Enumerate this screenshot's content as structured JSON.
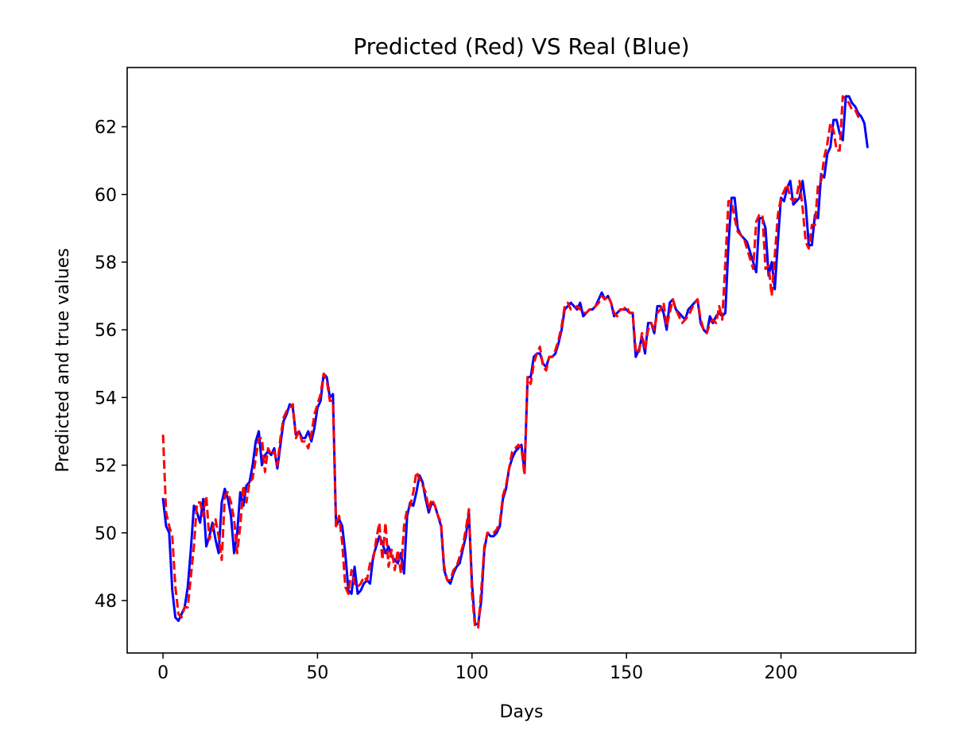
{
  "chart_data": {
    "type": "line",
    "title": "Predicted (Red) VS Real (Blue)",
    "xlabel": "Days",
    "ylabel": "Predicted and true values",
    "xlim": [
      -11.6,
      243.6
    ],
    "ylim": [
      46.45,
      63.75
    ],
    "xticks": [
      0,
      50,
      100,
      150,
      200
    ],
    "yticks": [
      48,
      50,
      52,
      54,
      56,
      58,
      60,
      62
    ],
    "xtick_labels": [
      "0",
      "50",
      "100",
      "150",
      "200"
    ],
    "ytick_labels": [
      "48",
      "50",
      "52",
      "54",
      "56",
      "58",
      "60",
      "62"
    ],
    "grid": false,
    "colors": {
      "real": "#0000ff",
      "predicted": "#ff0000"
    },
    "series": [
      {
        "style": "solid",
        "x_start": 0,
        "values": [
          51.0,
          50.2,
          50.0,
          48.3,
          47.5,
          47.4,
          47.6,
          47.8,
          48.4,
          49.5,
          50.8,
          50.6,
          50.3,
          51.0,
          49.6,
          49.9,
          50.3,
          49.8,
          49.4,
          50.9,
          51.3,
          51.0,
          50.5,
          49.4,
          50.0,
          51.2,
          50.8,
          51.4,
          51.5,
          52.0,
          52.7,
          53.0,
          52.0,
          52.3,
          52.4,
          52.3,
          52.5,
          51.9,
          52.6,
          53.3,
          53.5,
          53.8,
          53.7,
          52.9,
          53.0,
          52.8,
          52.8,
          53.0,
          52.7,
          53.1,
          53.7,
          53.9,
          54.7,
          54.6,
          54.0,
          54.1,
          50.2,
          50.4,
          50.2,
          49.4,
          48.3,
          48.2,
          49.0,
          48.2,
          48.3,
          48.5,
          48.6,
          48.5,
          49.3,
          49.6,
          49.9,
          49.7,
          49.4,
          49.6,
          49.3,
          49.2,
          49.1,
          49.4,
          48.8,
          50.5,
          50.9,
          50.8,
          51.2,
          51.7,
          51.5,
          51.0,
          50.6,
          50.9,
          50.8,
          50.5,
          50.2,
          48.9,
          48.6,
          48.5,
          48.8,
          49.0,
          49.1,
          49.5,
          49.9,
          50.6,
          48.5,
          47.3,
          47.3,
          48.0,
          49.5,
          50.0,
          49.9,
          49.9,
          50.0,
          50.2,
          51.0,
          51.3,
          51.9,
          52.2,
          52.4,
          52.5,
          52.6,
          51.8,
          54.6,
          54.6,
          55.2,
          55.3,
          55.3,
          55.0,
          54.9,
          55.2,
          55.2,
          55.3,
          55.6,
          56.0,
          56.6,
          56.7,
          56.8,
          56.7,
          56.6,
          56.8,
          56.4,
          56.5,
          56.6,
          56.6,
          56.7,
          56.9,
          57.1,
          56.9,
          57.0,
          56.8,
          56.4,
          56.5,
          56.6,
          56.6,
          56.6,
          56.5,
          56.5,
          55.2,
          55.4,
          55.8,
          55.3,
          56.2,
          56.2,
          55.9,
          56.7,
          56.7,
          56.5,
          56.0,
          56.8,
          56.9,
          56.6,
          56.5,
          56.4,
          56.3,
          56.6,
          56.7,
          56.8,
          56.9,
          56.2,
          56.0,
          55.9,
          56.4,
          56.2,
          56.4,
          56.5,
          56.4,
          56.5,
          58.5,
          59.9,
          59.9,
          59.0,
          58.8,
          58.7,
          58.6,
          58.3,
          58.0,
          57.7,
          59.3,
          59.3,
          59.0,
          57.6,
          58.0,
          57.2,
          58.6,
          59.9,
          59.8,
          60.2,
          60.4,
          59.7,
          59.8,
          59.9,
          60.4,
          59.7,
          58.5,
          58.5,
          59.4,
          59.3,
          60.6,
          60.5,
          61.2,
          61.4,
          62.2,
          62.2,
          61.8,
          61.6,
          62.9,
          62.9,
          62.7,
          62.6,
          62.4,
          62.3,
          62.1,
          61.4
        ]
      },
      {
        "style": "dashed",
        "x_start": 0,
        "values": [
          52.9,
          50.6,
          50.2,
          49.9,
          48.4,
          47.6,
          47.5,
          47.8,
          47.8,
          48.7,
          49.6,
          50.9,
          50.9,
          50.5,
          51.1,
          49.8,
          50.1,
          50.4,
          49.9,
          49.2,
          51.1,
          51.2,
          50.9,
          50.4,
          49.4,
          50.2,
          51.4,
          50.9,
          51.5,
          51.6,
          52.2,
          52.8,
          52.8,
          51.8,
          52.5,
          52.3,
          52.4,
          52.0,
          52.8,
          53.4,
          53.6,
          53.7,
          53.8,
          52.8,
          53.0,
          52.7,
          52.7,
          52.5,
          52.9,
          53.5,
          53.8,
          54.1,
          54.7,
          54.5,
          53.9,
          53.9,
          50.2,
          50.5,
          49.7,
          48.4,
          48.2,
          48.9,
          48.5,
          48.4,
          48.5,
          48.7,
          48.6,
          49.1,
          49.2,
          49.8,
          50.3,
          49.2,
          50.3,
          49.0,
          49.5,
          48.9,
          49.5,
          48.8,
          50.2,
          50.7,
          50.8,
          51.2,
          51.8,
          51.6,
          51.4,
          51.2,
          50.7,
          51.0,
          50.8,
          50.5,
          50.3,
          49.0,
          48.6,
          48.6,
          48.9,
          49.0,
          49.3,
          49.6,
          50.1,
          50.7,
          48.2,
          47.2,
          47.2,
          48.3,
          49.6,
          50.0,
          50.0,
          50.0,
          50.1,
          50.3,
          51.1,
          51.4,
          51.9,
          52.4,
          52.5,
          52.6,
          52.5,
          51.7,
          54.6,
          54.4,
          55.0,
          55.3,
          55.5,
          54.9,
          54.8,
          55.2,
          55.2,
          55.4,
          55.7,
          56.1,
          56.7,
          56.8,
          56.6,
          56.6,
          56.7,
          56.6,
          56.5,
          56.5,
          56.6,
          56.6,
          56.7,
          56.8,
          57.0,
          56.9,
          57.0,
          56.8,
          56.5,
          56.4,
          56.6,
          56.6,
          56.7,
          56.5,
          56.5,
          55.4,
          55.3,
          55.9,
          55.4,
          56.0,
          56.2,
          56.0,
          56.5,
          56.6,
          56.8,
          56.1,
          56.5,
          56.9,
          56.6,
          56.4,
          56.2,
          56.3,
          56.4,
          56.6,
          56.8,
          56.9,
          56.3,
          56.0,
          55.9,
          56.2,
          56.3,
          56.2,
          56.7,
          56.3,
          58.0,
          59.8,
          59.8,
          59.3,
          58.9,
          58.8,
          58.7,
          58.4,
          58.1,
          57.8,
          59.2,
          59.4,
          59.4,
          57.8,
          57.9,
          57.0,
          58.2,
          59.4,
          59.9,
          60.1,
          60.3,
          59.9,
          59.8,
          59.9,
          60.4,
          59.6,
          58.6,
          58.4,
          59.1,
          59.1,
          60.3,
          60.4,
          61.1,
          61.5,
          62.1,
          61.9,
          61.3,
          61.3,
          62.9,
          62.8,
          62.7,
          62.5,
          62.5,
          62.3,
          62.2
        ]
      }
    ]
  }
}
